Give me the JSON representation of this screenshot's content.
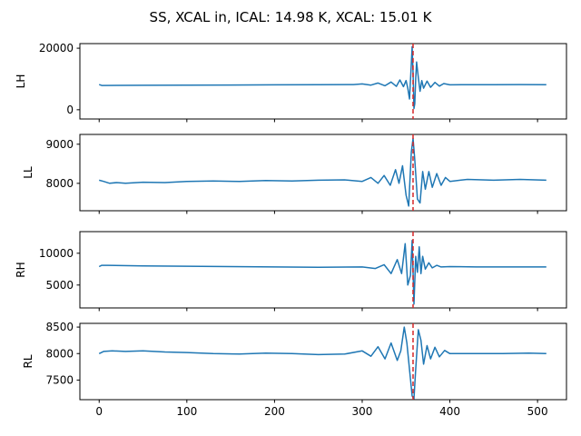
{
  "chart_data": {
    "title": "SS, XCAL in, ICAL: 14.98 K, XCAL: 15.01 K",
    "type": "line",
    "shared_x": true,
    "xlim": [
      -22,
      533
    ],
    "xticks": [
      0,
      100,
      200,
      300,
      400,
      500
    ],
    "line_color": "#1f77b4",
    "marker_color": "#d62728",
    "marker_x": 358,
    "subplots": [
      {
        "ylabel": "LH",
        "ylim": [
          -3000,
          21500
        ],
        "yticks": [
          0,
          20000
        ],
        "series": [
          {
            "x": [
              0,
              3,
              50,
              100,
              150,
              200,
              250,
              290,
              300,
              310,
              318,
              326,
              333,
              339,
              343,
              347,
              350,
              352,
              354,
              356,
              357,
              358,
              359,
              360,
              361,
              362,
              364,
              366,
              368,
              370,
              374,
              378,
              383,
              388,
              393,
              400,
              420,
              450,
              480,
              510
            ],
            "y": [
              8200,
              7900,
              7950,
              8000,
              8050,
              8100,
              8150,
              8200,
              8400,
              8000,
              8700,
              7800,
              9000,
              7600,
              9700,
              7500,
              9500,
              7000,
              3500,
              15000,
              20500,
              12000,
              400,
              2000,
              10000,
              15500,
              10500,
              6000,
              9500,
              7000,
              9300,
              7300,
              8900,
              7700,
              8500,
              8100,
              8150,
              8150,
              8200,
              8150
            ]
          }
        ]
      },
      {
        "ylabel": "LL",
        "ylim": [
          7300,
          9250
        ],
        "yticks": [
          8000,
          9000
        ],
        "series": [
          {
            "x": [
              0,
              5,
              12,
              20,
              30,
              50,
              75,
              100,
              130,
              160,
              190,
              220,
              250,
              280,
              300,
              310,
              318,
              325,
              332,
              338,
              342,
              346,
              350,
              353,
              356,
              358,
              360,
              363,
              366,
              369,
              372,
              376,
              380,
              385,
              390,
              395,
              400,
              420,
              450,
              480,
              510
            ],
            "y": [
              8080,
              8050,
              8000,
              8020,
              8000,
              8030,
              8020,
              8050,
              8060,
              8050,
              8070,
              8060,
              8080,
              8090,
              8050,
              8150,
              8000,
              8200,
              7950,
              8350,
              8000,
              8450,
              7700,
              7420,
              8800,
              9150,
              8600,
              7600,
              7500,
              8300,
              7850,
              8300,
              7900,
              8250,
              7950,
              8150,
              8050,
              8100,
              8080,
              8100,
              8080
            ]
          }
        ]
      },
      {
        "ylabel": "RH",
        "ylim": [
          1400,
          13400
        ],
        "yticks": [
          5000,
          10000
        ],
        "series": [
          {
            "x": [
              0,
              3,
              10,
              50,
              100,
              150,
              200,
              250,
              300,
              315,
              325,
              333,
              340,
              345,
              349,
              352,
              355,
              357,
              359,
              361,
              363,
              365,
              367,
              369,
              372,
              376,
              380,
              385,
              390,
              400,
              430,
              470,
              510
            ],
            "y": [
              7900,
              8100,
              8100,
              8000,
              7950,
              7900,
              7850,
              7800,
              7850,
              7600,
              8200,
              6800,
              9000,
              6800,
              11500,
              5000,
              6500,
              12000,
              2000,
              9500,
              7000,
              11000,
              6800,
              9500,
              7500,
              8500,
              7700,
              8100,
              7850,
              7900,
              7850,
              7850,
              7850
            ]
          }
        ]
      },
      {
        "ylabel": "RL",
        "ylim": [
          7130,
          8570
        ],
        "yticks": [
          7500,
          8000,
          8500
        ],
        "series": [
          {
            "x": [
              0,
              5,
              15,
              30,
              50,
              75,
              100,
              130,
              160,
              190,
              220,
              250,
              280,
              300,
              310,
              318,
              326,
              333,
              340,
              344,
              348,
              351,
              354,
              357,
              359,
              361,
              364,
              367,
              370,
              374,
              378,
              383,
              388,
              394,
              400,
              430,
              460,
              490,
              510
            ],
            "y": [
              8000,
              8040,
              8050,
              8040,
              8050,
              8030,
              8020,
              8000,
              7990,
              8010,
              8000,
              7980,
              7990,
              8050,
              7950,
              8130,
              7900,
              8200,
              7870,
              8050,
              8500,
              8200,
              7700,
              7200,
              7150,
              7700,
              8450,
              8250,
              7800,
              8150,
              7900,
              8120,
              7940,
              8060,
              8000,
              8000,
              8000,
              8010,
              8000
            ]
          }
        ]
      }
    ]
  }
}
